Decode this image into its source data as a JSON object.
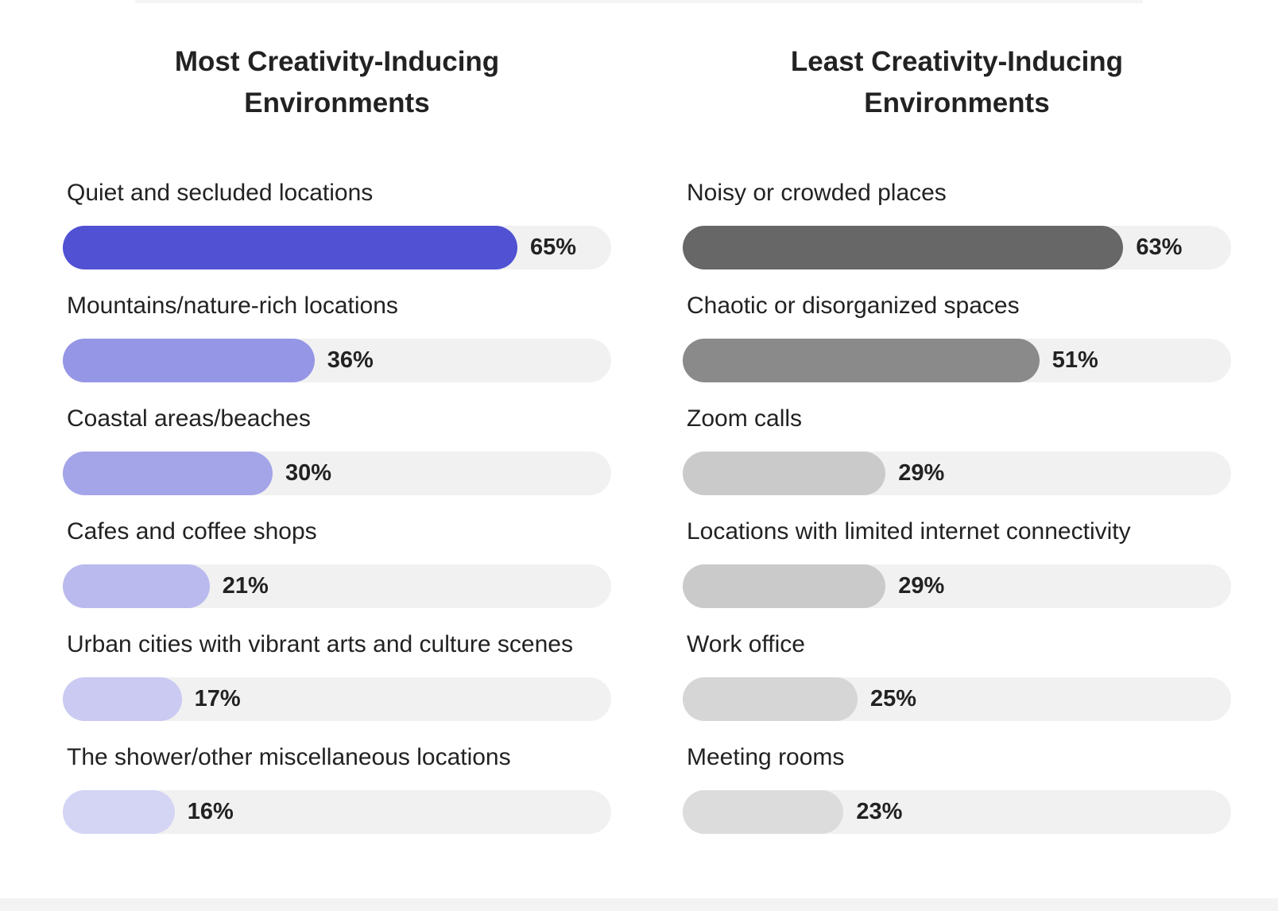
{
  "chart_data": [
    {
      "type": "bar",
      "orientation": "horizontal",
      "title": "Most Creativity-Inducing Environments",
      "unit": "%",
      "categories": [
        "Quiet and secluded locations",
        "Mountains/nature-rich locations",
        "Coastal areas/beaches",
        "Cafes and coffee shops",
        "Urban cities with vibrant arts and culture scenes",
        "The shower/other miscellaneous locations"
      ],
      "values": [
        65,
        36,
        30,
        21,
        17,
        16
      ],
      "labels": [
        "65%",
        "36%",
        "30%",
        "21%",
        "17%",
        "16%"
      ],
      "colors": [
        "#5151d3",
        "#9696e6",
        "#a4a4e9",
        "#babaee",
        "#cacaf2",
        "#d4d4f5"
      ],
      "track_color": "#f1f1f1"
    },
    {
      "type": "bar",
      "orientation": "horizontal",
      "title": "Least Creativity-Inducing Environments",
      "unit": "%",
      "categories": [
        "Noisy or crowded places",
        "Chaotic or disorganized spaces",
        "Zoom calls",
        "Locations with limited internet connectivity",
        "Work office",
        "Meeting rooms"
      ],
      "values": [
        63,
        51,
        29,
        29,
        25,
        23
      ],
      "labels": [
        "63%",
        "51%",
        "29%",
        "29%",
        "25%",
        "23%"
      ],
      "colors": [
        "#676767",
        "#8a8a8a",
        "#cacaca",
        "#cacaca",
        "#d6d6d6",
        "#dcdcdc"
      ],
      "track_color": "#f1f1f1"
    }
  ]
}
